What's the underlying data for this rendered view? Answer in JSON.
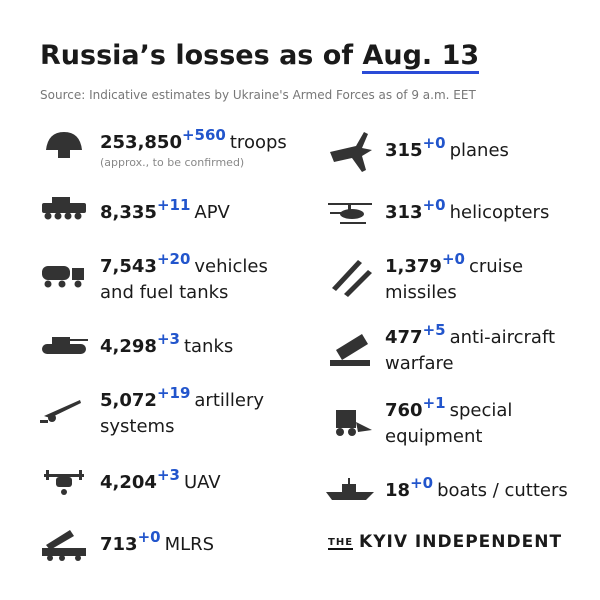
{
  "header": {
    "title": "Russia’s losses as of",
    "date": "Aug. 13",
    "source": "Source: Indicative estimates by Ukraine's Armed Forces as of 9 a.m. EET"
  },
  "left": [
    {
      "value": "253,850",
      "change": "+560",
      "label": [
        "troops"
      ],
      "note": "(approx., to be confirmed)"
    },
    {
      "value": "8,335",
      "change": "+11",
      "label": [
        "APV"
      ]
    },
    {
      "value": "7,543",
      "change": "+20",
      "label": [
        "vehicles",
        "and fuel tanks"
      ]
    },
    {
      "value": "4,298",
      "change": "+3",
      "label": [
        "tanks"
      ]
    },
    {
      "value": "5,072",
      "change": "+19",
      "label": [
        "artillery",
        "systems"
      ]
    },
    {
      "value": "4,204",
      "change": "+3",
      "label": [
        "UAV"
      ]
    },
    {
      "value": "713",
      "change": "+0",
      "label": [
        "MLRS"
      ]
    }
  ],
  "right": [
    {
      "value": "315",
      "change": "+0",
      "label": [
        "planes"
      ]
    },
    {
      "value": "313",
      "change": "+0",
      "label": [
        "helicopters"
      ]
    },
    {
      "value": "1,379",
      "change": "+0",
      "label": [
        "cruise",
        "missiles"
      ]
    },
    {
      "value": "477",
      "change": "+5",
      "label": [
        "anti-aircraft",
        "warfare"
      ]
    },
    {
      "value": "760",
      "change": "+1",
      "label": [
        "special",
        "equipment"
      ]
    },
    {
      "value": "18",
      "change": "+0",
      "label": [
        "boats / cutters"
      ]
    }
  ],
  "logo": {
    "prefix": "THE",
    "name": "KYIV INDEPENDENT"
  }
}
